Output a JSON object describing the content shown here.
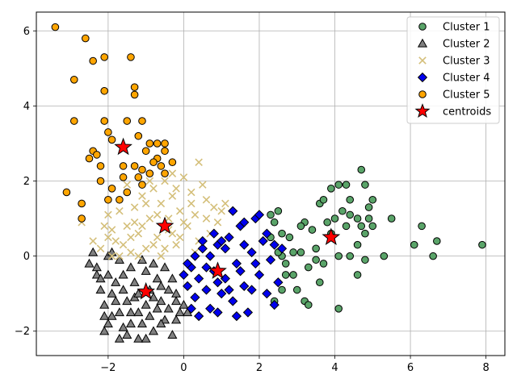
{
  "chart_data": {
    "type": "scatter",
    "title": "",
    "xlabel": "",
    "ylabel": "",
    "xlim": [
      -3.9,
      8.5
    ],
    "ylim": [
      -2.65,
      6.5
    ],
    "xticks": [
      -2,
      0,
      2,
      4,
      6,
      8
    ],
    "yticks": [
      -2,
      0,
      2,
      4,
      6
    ],
    "xtick_labels": [
      "−2",
      "0",
      "2",
      "4",
      "6",
      "8"
    ],
    "ytick_labels": [
      "−2",
      "0",
      "2",
      "4",
      "6"
    ],
    "grid": true,
    "legend_position": "top-right",
    "series": [
      {
        "name": "Cluster 1",
        "marker": "circle",
        "color": "#5aa469",
        "edge": "#000000",
        "points": [
          [
            2.3,
            1.1
          ],
          [
            2.5,
            1.2
          ],
          [
            2.4,
            0.9
          ],
          [
            2.6,
            0.6
          ],
          [
            2.3,
            0.5
          ],
          [
            2.8,
            0.5
          ],
          [
            2.9,
            0.1
          ],
          [
            2.6,
            0.0
          ],
          [
            2.7,
            -0.2
          ],
          [
            2.9,
            -0.5
          ],
          [
            2.6,
            -0.9
          ],
          [
            2.4,
            -1.2
          ],
          [
            3.0,
            -0.9
          ],
          [
            3.2,
            -1.2
          ],
          [
            3.3,
            -1.3
          ],
          [
            3.3,
            -0.3
          ],
          [
            3.5,
            0.2
          ],
          [
            3.6,
            -0.7
          ],
          [
            3.7,
            -0.2
          ],
          [
            3.2,
            0.9
          ],
          [
            3.4,
            0.7
          ],
          [
            3.6,
            1.4
          ],
          [
            3.7,
            1.5
          ],
          [
            3.9,
            1.8
          ],
          [
            4.1,
            1.9
          ],
          [
            4.3,
            1.9
          ],
          [
            4.4,
            1.5
          ],
          [
            4.2,
            1.2
          ],
          [
            4.4,
            1.1
          ],
          [
            4.6,
            1.0
          ],
          [
            4.7,
            2.3
          ],
          [
            4.8,
            1.9
          ],
          [
            5.0,
            1.5
          ],
          [
            4.9,
            1.3
          ],
          [
            4.9,
            1.0
          ],
          [
            5.0,
            0.8
          ],
          [
            4.8,
            0.6
          ],
          [
            4.6,
            0.3
          ],
          [
            4.4,
            0.0
          ],
          [
            4.6,
            -0.5
          ],
          [
            4.8,
            -0.1
          ],
          [
            4.1,
            0.0
          ],
          [
            4.1,
            -1.4
          ],
          [
            5.3,
            0.0
          ],
          [
            5.5,
            1.0
          ],
          [
            6.1,
            0.3
          ],
          [
            6.3,
            0.8
          ],
          [
            6.6,
            0.0
          ],
          [
            6.7,
            0.4
          ],
          [
            7.9,
            0.3
          ],
          [
            3.1,
            0.8
          ],
          [
            3.5,
            -0.1
          ],
          [
            4.0,
            1.0
          ],
          [
            3.9,
            0.6
          ],
          [
            4.3,
            0.8
          ],
          [
            4.7,
            0.8
          ],
          [
            3.8,
            0.9
          ],
          [
            2.7,
            -0.5
          ],
          [
            3.1,
            0.1
          ],
          [
            2.5,
            0.1
          ]
        ]
      },
      {
        "name": "Cluster 2",
        "marker": "triangle",
        "color": "#808080",
        "edge": "#000000",
        "points": [
          [
            -2.5,
            -0.2
          ],
          [
            -2.4,
            0.1
          ],
          [
            -2.3,
            -0.5
          ],
          [
            -2.2,
            -0.9
          ],
          [
            -2.1,
            -1.3
          ],
          [
            -2.0,
            -1.8
          ],
          [
            -2.1,
            -2.0
          ],
          [
            -1.9,
            -1.6
          ],
          [
            -1.8,
            -1.2
          ],
          [
            -1.7,
            -2.2
          ],
          [
            -1.6,
            -1.9
          ],
          [
            -1.5,
            -2.1
          ],
          [
            -1.4,
            -1.5
          ],
          [
            -1.3,
            -1.1
          ],
          [
            -1.2,
            -2.2
          ],
          [
            -1.1,
            -1.8
          ],
          [
            -1.0,
            -1.3
          ],
          [
            -0.9,
            -1.6
          ],
          [
            -0.8,
            -2.0
          ],
          [
            -0.7,
            -1.4
          ],
          [
            -0.6,
            -1.2
          ],
          [
            -0.5,
            -1.7
          ],
          [
            -0.3,
            -2.1
          ],
          [
            -0.4,
            -1.4
          ],
          [
            -0.2,
            -1.0
          ],
          [
            -0.1,
            -1.5
          ],
          [
            -0.3,
            -0.6
          ],
          [
            -0.5,
            -0.3
          ],
          [
            -0.8,
            -0.2
          ],
          [
            -1.1,
            -0.1
          ],
          [
            -1.4,
            -0.3
          ],
          [
            -1.7,
            -0.1
          ],
          [
            -2.0,
            0.0
          ],
          [
            -2.2,
            -0.6
          ],
          [
            -2.0,
            -0.5
          ],
          [
            -1.8,
            -0.7
          ],
          [
            -1.6,
            -0.5
          ],
          [
            -1.3,
            -0.7
          ],
          [
            -1.0,
            -0.4
          ],
          [
            -0.7,
            -0.6
          ],
          [
            -0.4,
            -0.9
          ],
          [
            -0.2,
            -1.2
          ],
          [
            0.0,
            -1.3
          ],
          [
            0.1,
            -1.5
          ],
          [
            -1.9,
            -1.0
          ],
          [
            -1.7,
            -1.5
          ],
          [
            -1.5,
            -1.2
          ],
          [
            -1.2,
            -1.5
          ],
          [
            -0.9,
            -0.9
          ],
          [
            -0.6,
            -0.8
          ],
          [
            -2.1,
            -1.6
          ],
          [
            -1.4,
            -1.8
          ],
          [
            -1.0,
            -2.2
          ],
          [
            -0.6,
            -1.8
          ],
          [
            -0.2,
            -1.7
          ],
          [
            -1.6,
            -0.9
          ],
          [
            -2.3,
            -0.3
          ],
          [
            -1.9,
            0.1
          ],
          [
            -1.2,
            -1.0
          ],
          [
            -0.8,
            -1.1
          ]
        ]
      },
      {
        "name": "Cluster 3",
        "marker": "x",
        "color": "#d4bf7a",
        "edge": "#d4bf7a",
        "points": [
          [
            -2.7,
            0.9
          ],
          [
            -2.4,
            0.4
          ],
          [
            -2.2,
            0.2
          ],
          [
            -2.0,
            1.1
          ],
          [
            -1.9,
            0.7
          ],
          [
            -1.8,
            0.4
          ],
          [
            -1.7,
            1.2
          ],
          [
            -1.6,
            0.3
          ],
          [
            -1.5,
            0.8
          ],
          [
            -1.4,
            0.1
          ],
          [
            -1.3,
            1.3
          ],
          [
            -1.2,
            0.6
          ],
          [
            -1.1,
            1.6
          ],
          [
            -1.0,
            0.2
          ],
          [
            -0.9,
            1.0
          ],
          [
            -0.8,
            1.8
          ],
          [
            -0.7,
            0.5
          ],
          [
            -0.6,
            1.4
          ],
          [
            -0.5,
            2.0
          ],
          [
            -0.4,
            0.7
          ],
          [
            -0.3,
            1.6
          ],
          [
            -0.2,
            0.3
          ],
          [
            -0.1,
            1.2
          ],
          [
            0.0,
            2.1
          ],
          [
            0.1,
            0.8
          ],
          [
            0.2,
            1.7
          ],
          [
            0.3,
            1.1
          ],
          [
            0.4,
            0.4
          ],
          [
            0.5,
            1.9
          ],
          [
            0.6,
            1.0
          ],
          [
            0.7,
            0.6
          ],
          [
            0.8,
            1.3
          ],
          [
            0.9,
            0.9
          ],
          [
            1.0,
            1.2
          ],
          [
            1.1,
            1.4
          ],
          [
            0.4,
            2.5
          ],
          [
            -0.3,
            2.2
          ],
          [
            -0.6,
            0.0
          ],
          [
            -1.2,
            0.0
          ],
          [
            -1.7,
            0.0
          ],
          [
            -2.1,
            0.8
          ],
          [
            -1.5,
            1.9
          ],
          [
            -0.9,
            2.0
          ],
          [
            -0.1,
            0.5
          ],
          [
            0.3,
            0.1
          ],
          [
            -0.4,
            1.0
          ],
          [
            -0.8,
            0.3
          ],
          [
            -1.0,
            1.4
          ],
          [
            -1.3,
            0.9
          ],
          [
            -0.2,
            1.8
          ],
          [
            0.6,
            1.5
          ],
          [
            -0.5,
            0.2
          ],
          [
            -1.9,
            0.0
          ],
          [
            0.2,
            1.4
          ],
          [
            -0.7,
            1.1
          ],
          [
            -1.4,
            0.5
          ],
          [
            -2.0,
            0.5
          ],
          [
            -1.1,
            0.8
          ],
          [
            0.0,
            0.9
          ],
          [
            -0.3,
            0.6
          ]
        ]
      },
      {
        "name": "Cluster 4",
        "marker": "diamond",
        "color": "#0000ee",
        "edge": "#000000",
        "points": [
          [
            0.0,
            -0.5
          ],
          [
            0.1,
            -0.8
          ],
          [
            0.2,
            -0.3
          ],
          [
            0.3,
            -1.1
          ],
          [
            0.4,
            -0.6
          ],
          [
            0.5,
            0.2
          ],
          [
            0.6,
            -0.9
          ],
          [
            0.7,
            -1.4
          ],
          [
            0.8,
            -0.4
          ],
          [
            0.9,
            0.3
          ],
          [
            1.0,
            -1.0
          ],
          [
            1.1,
            -0.6
          ],
          [
            1.2,
            0.5
          ],
          [
            1.3,
            -1.2
          ],
          [
            1.4,
            -0.2
          ],
          [
            1.5,
            0.8
          ],
          [
            1.6,
            -0.8
          ],
          [
            1.7,
            -1.5
          ],
          [
            1.8,
            0.1
          ],
          [
            1.9,
            1.0
          ],
          [
            2.0,
            -0.5
          ],
          [
            2.1,
            0.4
          ],
          [
            2.2,
            -1.0
          ],
          [
            2.3,
            -0.1
          ],
          [
            2.4,
            -1.3
          ],
          [
            2.5,
            -0.7
          ],
          [
            2.6,
            0.2
          ],
          [
            1.3,
            1.2
          ],
          [
            1.6,
            0.9
          ],
          [
            0.4,
            -1.6
          ],
          [
            0.2,
            -1.4
          ],
          [
            0.9,
            -1.5
          ],
          [
            1.4,
            -1.6
          ],
          [
            2.0,
            1.1
          ],
          [
            0.5,
            0.4
          ],
          [
            0.7,
            0.0
          ],
          [
            1.1,
            0.2
          ],
          [
            1.5,
            -0.4
          ],
          [
            1.8,
            -0.9
          ],
          [
            2.2,
            0.6
          ],
          [
            0.3,
            0.0
          ],
          [
            0.6,
            -0.3
          ],
          [
            0.9,
            -0.7
          ],
          [
            1.2,
            -0.9
          ],
          [
            1.6,
            0.3
          ],
          [
            1.9,
            -0.2
          ],
          [
            2.4,
            0.3
          ],
          [
            0.1,
            -0.2
          ],
          [
            0.8,
            0.6
          ],
          [
            1.0,
            0.4
          ]
        ]
      },
      {
        "name": "Cluster 5",
        "marker": "circle",
        "color": "#ffa500",
        "edge": "#000000",
        "points": [
          [
            -3.4,
            6.1
          ],
          [
            -2.6,
            5.8
          ],
          [
            -2.4,
            5.2
          ],
          [
            -2.1,
            5.3
          ],
          [
            -1.4,
            5.3
          ],
          [
            -2.9,
            4.7
          ],
          [
            -2.1,
            4.4
          ],
          [
            -1.3,
            4.5
          ],
          [
            -1.3,
            4.3
          ],
          [
            -2.9,
            3.6
          ],
          [
            -1.1,
            3.6
          ],
          [
            -1.5,
            3.6
          ],
          [
            -2.1,
            3.6
          ],
          [
            -2.0,
            3.3
          ],
          [
            -1.2,
            3.2
          ],
          [
            -0.9,
            3.0
          ],
          [
            -0.7,
            3.0
          ],
          [
            -0.5,
            3.0
          ],
          [
            -2.4,
            2.8
          ],
          [
            -2.3,
            2.7
          ],
          [
            -1.9,
            3.1
          ],
          [
            -1.0,
            2.8
          ],
          [
            -0.5,
            2.8
          ],
          [
            -0.7,
            2.6
          ],
          [
            -2.5,
            2.6
          ],
          [
            -2.2,
            2.4
          ],
          [
            -1.6,
            2.4
          ],
          [
            -1.3,
            2.4
          ],
          [
            -1.1,
            2.3
          ],
          [
            -0.8,
            2.5
          ],
          [
            -0.3,
            2.5
          ],
          [
            -0.5,
            2.2
          ],
          [
            -1.2,
            2.1
          ],
          [
            -1.6,
            2.1
          ],
          [
            -2.2,
            2.0
          ],
          [
            -1.9,
            1.8
          ],
          [
            -1.1,
            1.9
          ],
          [
            -1.5,
            1.7
          ],
          [
            -1.7,
            1.5
          ],
          [
            -2.0,
            1.5
          ],
          [
            -3.1,
            1.7
          ],
          [
            -2.7,
            1.4
          ],
          [
            -2.7,
            1.0
          ],
          [
            -0.6,
            2.4
          ],
          [
            -0.9,
            2.2
          ]
        ]
      }
    ],
    "centroids": {
      "name": "centroids",
      "marker": "star",
      "color": "#ff0000",
      "edge": "#000000",
      "points": [
        [
          -1.6,
          2.9
        ],
        [
          -0.5,
          0.8
        ],
        [
          0.9,
          -0.4
        ],
        [
          -1.0,
          -0.95
        ],
        [
          3.9,
          0.5
        ]
      ]
    }
  }
}
